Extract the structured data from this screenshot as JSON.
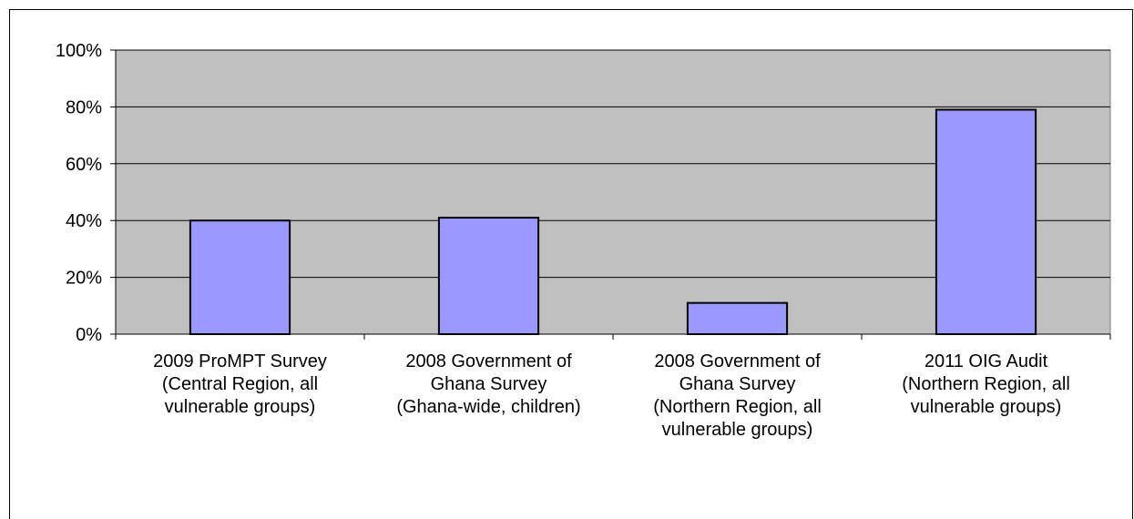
{
  "chart_data": {
    "type": "bar",
    "categories": [
      [
        "2009 ProMPT Survey",
        "(Central Region, all",
        "vulnerable groups)"
      ],
      [
        "2008 Government of",
        "Ghana Survey",
        "(Ghana-wide, children)"
      ],
      [
        "2008 Government of",
        "Ghana Survey",
        "(Northern Region, all",
        "vulnerable groups)"
      ],
      [
        "2011 OIG Audit",
        "(Northern Region, all",
        "vulnerable groups)"
      ]
    ],
    "values": [
      40,
      41,
      11,
      79
    ],
    "ylim": [
      0,
      100
    ],
    "yticks": [
      "0%",
      "20%",
      "40%",
      "60%",
      "80%",
      "100%"
    ],
    "title": "",
    "xlabel": "",
    "ylabel": "",
    "grid": true,
    "colors": {
      "plot_background": "#c0c0c0",
      "bar_fill": "#9999ff",
      "bar_stroke": "#000000",
      "gridline": "#000000"
    }
  }
}
